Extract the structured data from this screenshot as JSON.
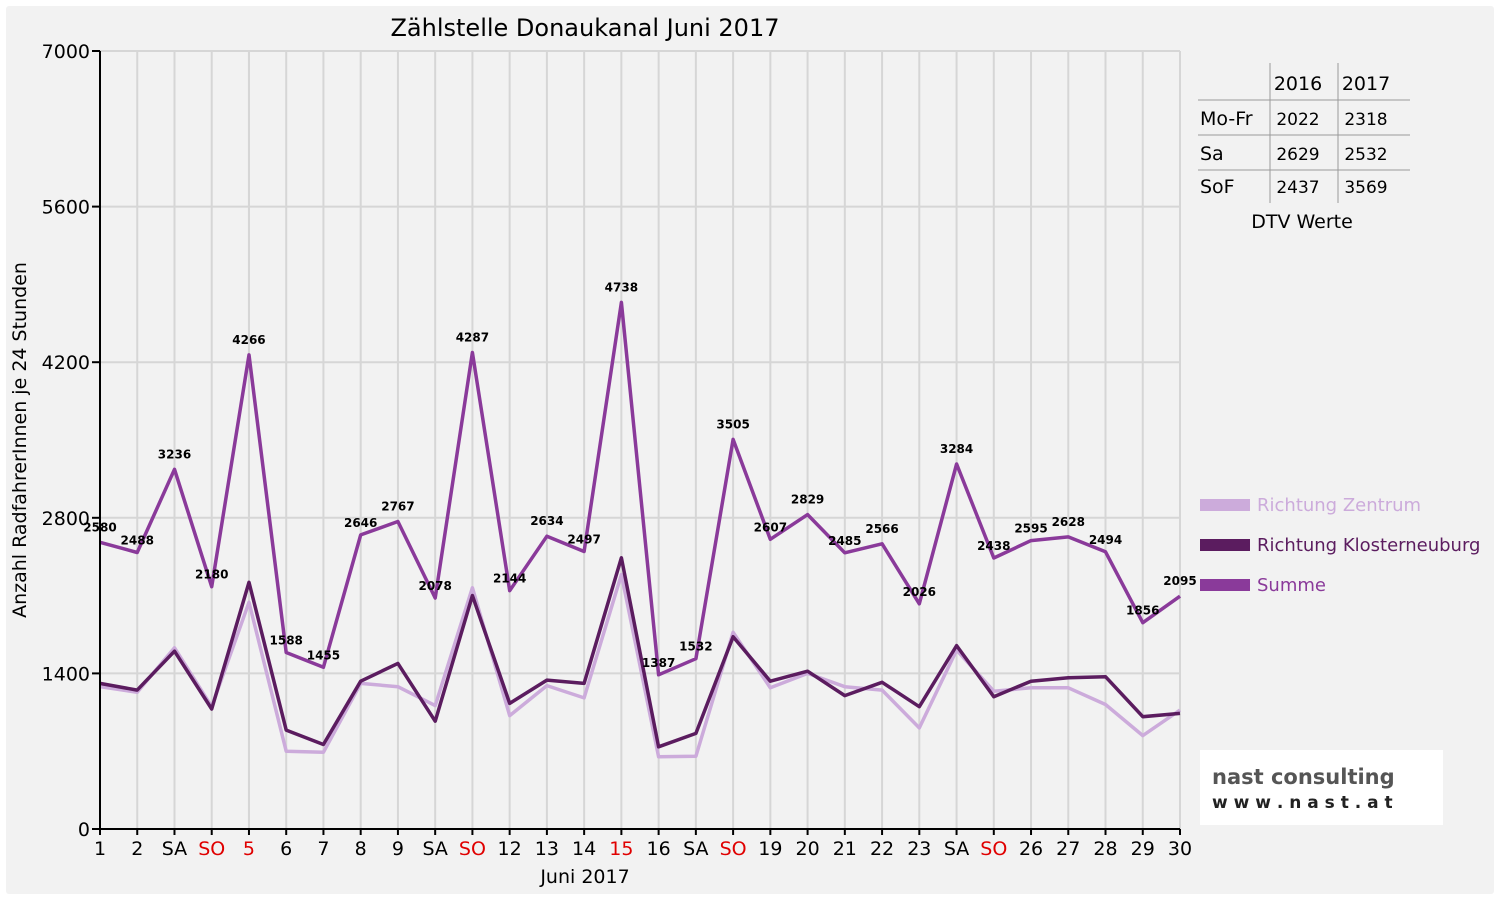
{
  "chart_data": {
    "type": "line",
    "title": "Zählstelle Donaukanal Juni 2017",
    "xlabel": "Juni 2017",
    "ylabel": "Anzahl RadfahrerInnen je 24 Stunden",
    "ylim": [
      0,
      7000
    ],
    "yticks": [
      "0",
      "1400",
      "2800",
      "4200",
      "5600",
      "7000"
    ],
    "grid": true,
    "legend_position": "right",
    "categories": [
      "1",
      "2",
      "SA",
      "SO",
      "5",
      "6",
      "7",
      "8",
      "9",
      "SA",
      "SO",
      "12",
      "13",
      "14",
      "15",
      "16",
      "SA",
      "SO",
      "19",
      "20",
      "21",
      "22",
      "23",
      "SA",
      "SO",
      "26",
      "27",
      "28",
      "29",
      "30"
    ],
    "red_categories": [
      3,
      4,
      10,
      14,
      17,
      24
    ],
    "series": [
      {
        "name": "Richtung Zentrum",
        "color": "#ccabdb",
        "values": [
          1280,
          1230,
          1630,
          1100,
          2040,
          700,
          690,
          1310,
          1280,
          1110,
          2170,
          1020,
          1290,
          1180,
          2290,
          650,
          655,
          1770,
          1270,
          1400,
          1280,
          1250,
          910,
          1610,
          1240,
          1270,
          1270,
          1120,
          840,
          1070
        ]
      },
      {
        "name": "Richtung Klosterneuburg",
        "color": "#5b1c5f",
        "values": [
          1310,
          1250,
          1600,
          1080,
          2220,
          890,
          760,
          1330,
          1490,
          970,
          2100,
          1130,
          1340,
          1310,
          2440,
          740,
          860,
          1730,
          1330,
          1420,
          1200,
          1320,
          1100,
          1650,
          1190,
          1330,
          1360,
          1370,
          1010,
          1040
        ]
      },
      {
        "name": "Summe",
        "color": "#8a3a9a",
        "values": [
          2580,
          2488,
          3236,
          2180,
          4266,
          1588,
          1455,
          2646,
          2767,
          2078,
          4287,
          2144,
          2634,
          2497,
          4738,
          1387,
          1532,
          3505,
          2607,
          2829,
          2485,
          2566,
          2026,
          3284,
          2438,
          2595,
          2628,
          2494,
          1856,
          2095
        ]
      }
    ],
    "data_labels": [
      "2580",
      "2488",
      "3236",
      "2180",
      "4266",
      "1588",
      "1455",
      "2646",
      "2767",
      "2078",
      "4287",
      "2144",
      "2634",
      "2497",
      "4738",
      "1387",
      "1532",
      "3505",
      "2607",
      "2829",
      "2485",
      "2566",
      "2026",
      "3284",
      "2438",
      "2595",
      "2628",
      "2494",
      "1856",
      "2095"
    ]
  },
  "dtv_table": {
    "headers": [
      "",
      "2016",
      "2017"
    ],
    "rows": [
      [
        "Mo-Fr",
        "2022",
        "2318"
      ],
      [
        "Sa",
        "2629",
        "2532"
      ],
      [
        "SoF",
        "2437",
        "3569"
      ]
    ],
    "caption": "DTV Werte"
  },
  "logo": {
    "line1": "nast consulting",
    "line2": "w w w . n a s t . a t",
    "nast_color": "#c0272d",
    "consulting_color": "#555555"
  }
}
